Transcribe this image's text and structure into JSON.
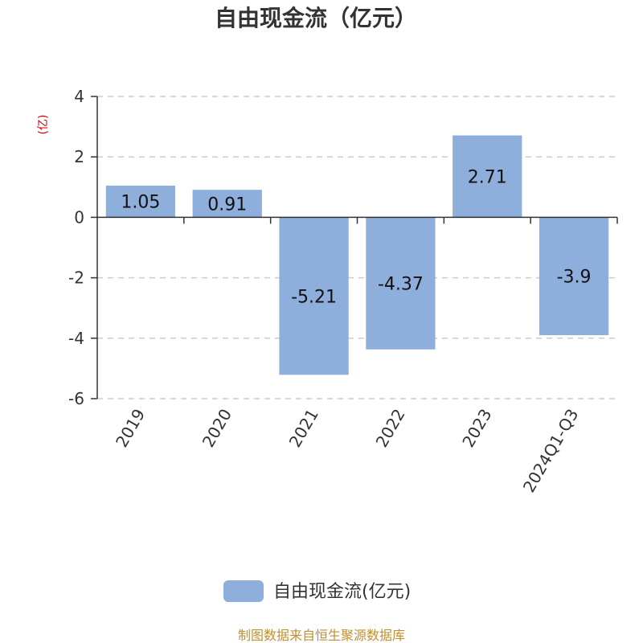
{
  "chart_data": {
    "type": "bar",
    "title": "自由现金流（亿元）",
    "ylabel": "(亿)",
    "categories": [
      "2019",
      "2020",
      "2021",
      "2022",
      "2023",
      "2024Q1-Q3"
    ],
    "series": [
      {
        "name": "自由现金流(亿元)",
        "values": [
          1.05,
          0.91,
          -5.21,
          -4.37,
          2.71,
          -3.9
        ]
      }
    ],
    "data_labels": [
      "1.05",
      "0.91",
      "-5.21",
      "-4.37",
      "2.71",
      "-3.9"
    ],
    "ylim": [
      -6,
      4
    ],
    "yticks": [
      4,
      2,
      0,
      -2,
      -4,
      -6
    ],
    "grid": true,
    "legend_position": "bottom",
    "bar_color": "#8eaedb"
  },
  "source_note": "制图数据来自恒生聚源数据库"
}
